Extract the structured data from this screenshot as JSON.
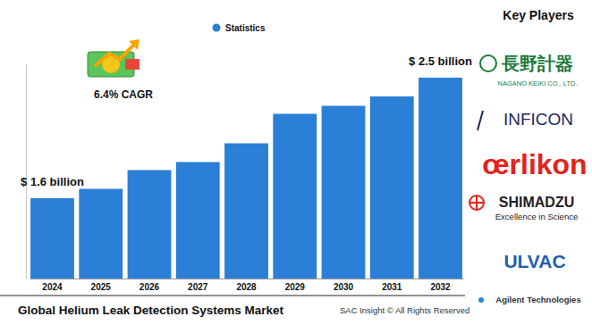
{
  "chart_data": {
    "type": "bar",
    "title": "Global Helium Leak Detection Systems Market",
    "categories": [
      "2024",
      "2025",
      "2026",
      "2027",
      "2028",
      "2029",
      "2030",
      "2031",
      "2032"
    ],
    "series": [
      {
        "name": "Statistics",
        "color": "#2b7fd6",
        "values": [
          1.6,
          1.67,
          1.81,
          1.87,
          2.01,
          2.23,
          2.29,
          2.36,
          2.5
        ]
      }
    ],
    "value_labels": [
      "$ 1.6 billion",
      null,
      null,
      null,
      null,
      null,
      null,
      null,
      "$ 2.5 billion"
    ],
    "data_labels": true,
    "ylim": [
      1.0,
      2.6
    ],
    "tick_labels": "x",
    "legend": "top",
    "annotations": [
      "6.4% CAGR"
    ],
    "key_players_title": "Key Players",
    "key_players": [
      {
        "name": "長野計器",
        "subtitle": "NAGANO KEIKI CO., LTD."
      },
      {
        "name": "INFICON"
      },
      {
        "name": "œrlikon"
      },
      {
        "name": "SHIMADZU",
        "subtitle": "Excellence in Science"
      },
      {
        "name": "ULVAC"
      },
      {
        "name": "Agilent Technologies"
      }
    ],
    "source": "SAC Insight © All Rights Reserved"
  }
}
